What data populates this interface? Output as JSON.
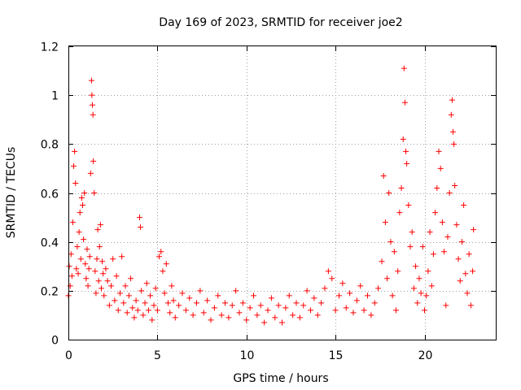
{
  "chart_data": {
    "type": "scatter",
    "title": "Day 169 of 2023, SRMTID for receiver joe2",
    "xlabel": "GPS time / hours",
    "ylabel": "SRMTID / TECUs",
    "xlim": [
      0,
      24
    ],
    "ylim": [
      0,
      1.2
    ],
    "xticks": [
      0,
      5,
      10,
      15,
      20
    ],
    "xtick_labels": [
      "0",
      "5",
      "10",
      "15",
      "20"
    ],
    "yticks": [
      0,
      0.2,
      0.4,
      0.6,
      0.8,
      1.0,
      1.2
    ],
    "ytick_labels": [
      "0",
      "0.2",
      "0.4",
      "0.6",
      "0.8",
      "1",
      "1.2"
    ],
    "grid": true,
    "marker": "+",
    "color": "#ff0000",
    "series": [
      {
        "name": "SRMTID",
        "points": [
          [
            0.0,
            0.18
          ],
          [
            0.05,
            0.3
          ],
          [
            0.1,
            0.22
          ],
          [
            0.15,
            0.35
          ],
          [
            0.2,
            0.26
          ],
          [
            0.25,
            0.48
          ],
          [
            0.3,
            0.71
          ],
          [
            0.35,
            0.77
          ],
          [
            0.4,
            0.64
          ],
          [
            0.45,
            0.29
          ],
          [
            0.5,
            0.38
          ],
          [
            0.55,
            0.27
          ],
          [
            0.6,
            0.44
          ],
          [
            0.65,
            0.52
          ],
          [
            0.7,
            0.33
          ],
          [
            0.75,
            0.58
          ],
          [
            0.8,
            0.55
          ],
          [
            0.85,
            0.41
          ],
          [
            0.9,
            0.6
          ],
          [
            0.95,
            0.31
          ],
          [
            1.0,
            0.25
          ],
          [
            1.05,
            0.37
          ],
          [
            1.1,
            0.22
          ],
          [
            1.15,
            0.29
          ],
          [
            1.2,
            0.34
          ],
          [
            1.25,
            0.68
          ],
          [
            1.3,
            1.06
          ],
          [
            1.32,
            1.0
          ],
          [
            1.35,
            0.96
          ],
          [
            1.38,
            0.92
          ],
          [
            1.4,
            0.73
          ],
          [
            1.45,
            0.6
          ],
          [
            1.5,
            0.28
          ],
          [
            1.55,
            0.19
          ],
          [
            1.6,
            0.33
          ],
          [
            1.65,
            0.45
          ],
          [
            1.7,
            0.24
          ],
          [
            1.75,
            0.38
          ],
          [
            1.8,
            0.47
          ],
          [
            1.85,
            0.21
          ],
          [
            1.9,
            0.32
          ],
          [
            1.95,
            0.27
          ],
          [
            2.0,
            0.18
          ],
          [
            2.1,
            0.29
          ],
          [
            2.2,
            0.24
          ],
          [
            2.3,
            0.14
          ],
          [
            2.4,
            0.22
          ],
          [
            2.5,
            0.33
          ],
          [
            2.6,
            0.16
          ],
          [
            2.7,
            0.26
          ],
          [
            2.8,
            0.12
          ],
          [
            2.9,
            0.19
          ],
          [
            3.0,
            0.34
          ],
          [
            3.1,
            0.15
          ],
          [
            3.2,
            0.22
          ],
          [
            3.3,
            0.11
          ],
          [
            3.4,
            0.18
          ],
          [
            3.5,
            0.25
          ],
          [
            3.6,
            0.13
          ],
          [
            3.7,
            0.09
          ],
          [
            3.8,
            0.16
          ],
          [
            3.9,
            0.12
          ],
          [
            4.0,
            0.5
          ],
          [
            4.05,
            0.46
          ],
          [
            4.1,
            0.2
          ],
          [
            4.2,
            0.1
          ],
          [
            4.3,
            0.15
          ],
          [
            4.4,
            0.23
          ],
          [
            4.5,
            0.12
          ],
          [
            4.6,
            0.18
          ],
          [
            4.7,
            0.08
          ],
          [
            4.8,
            0.14
          ],
          [
            4.9,
            0.21
          ],
          [
            5.0,
            0.12
          ],
          [
            5.1,
            0.34
          ],
          [
            5.2,
            0.36
          ],
          [
            5.3,
            0.28
          ],
          [
            5.4,
            0.19
          ],
          [
            5.5,
            0.31
          ],
          [
            5.6,
            0.15
          ],
          [
            5.7,
            0.11
          ],
          [
            5.8,
            0.22
          ],
          [
            5.9,
            0.16
          ],
          [
            6.0,
            0.09
          ],
          [
            6.2,
            0.14
          ],
          [
            6.4,
            0.19
          ],
          [
            6.6,
            0.12
          ],
          [
            6.8,
            0.17
          ],
          [
            7.0,
            0.1
          ],
          [
            7.2,
            0.15
          ],
          [
            7.4,
            0.2
          ],
          [
            7.6,
            0.11
          ],
          [
            7.8,
            0.16
          ],
          [
            8.0,
            0.08
          ],
          [
            8.2,
            0.13
          ],
          [
            8.4,
            0.18
          ],
          [
            8.6,
            0.1
          ],
          [
            8.8,
            0.15
          ],
          [
            9.0,
            0.09
          ],
          [
            9.2,
            0.14
          ],
          [
            9.4,
            0.2
          ],
          [
            9.6,
            0.11
          ],
          [
            9.8,
            0.15
          ],
          [
            10.0,
            0.08
          ],
          [
            10.2,
            0.13
          ],
          [
            10.4,
            0.18
          ],
          [
            10.6,
            0.1
          ],
          [
            10.8,
            0.14
          ],
          [
            11.0,
            0.07
          ],
          [
            11.2,
            0.12
          ],
          [
            11.4,
            0.17
          ],
          [
            11.6,
            0.09
          ],
          [
            11.8,
            0.14
          ],
          [
            12.0,
            0.07
          ],
          [
            12.2,
            0.13
          ],
          [
            12.4,
            0.18
          ],
          [
            12.6,
            0.1
          ],
          [
            12.8,
            0.15
          ],
          [
            13.0,
            0.09
          ],
          [
            13.2,
            0.14
          ],
          [
            13.4,
            0.2
          ],
          [
            13.6,
            0.12
          ],
          [
            13.8,
            0.17
          ],
          [
            14.0,
            0.1
          ],
          [
            14.2,
            0.15
          ],
          [
            14.4,
            0.21
          ],
          [
            14.6,
            0.28
          ],
          [
            14.8,
            0.25
          ],
          [
            15.0,
            0.12
          ],
          [
            15.2,
            0.18
          ],
          [
            15.4,
            0.23
          ],
          [
            15.6,
            0.13
          ],
          [
            15.8,
            0.19
          ],
          [
            16.0,
            0.11
          ],
          [
            16.2,
            0.16
          ],
          [
            16.4,
            0.22
          ],
          [
            16.6,
            0.12
          ],
          [
            16.8,
            0.18
          ],
          [
            17.0,
            0.1
          ],
          [
            17.2,
            0.15
          ],
          [
            17.4,
            0.21
          ],
          [
            17.6,
            0.32
          ],
          [
            17.7,
            0.67
          ],
          [
            17.8,
            0.48
          ],
          [
            17.9,
            0.25
          ],
          [
            18.0,
            0.6
          ],
          [
            18.1,
            0.4
          ],
          [
            18.2,
            0.18
          ],
          [
            18.3,
            0.36
          ],
          [
            18.4,
            0.12
          ],
          [
            18.5,
            0.28
          ],
          [
            18.6,
            0.52
          ],
          [
            18.7,
            0.62
          ],
          [
            18.8,
            0.82
          ],
          [
            18.85,
            1.11
          ],
          [
            18.9,
            0.97
          ],
          [
            18.95,
            0.77
          ],
          [
            19.0,
            0.72
          ],
          [
            19.1,
            0.55
          ],
          [
            19.2,
            0.38
          ],
          [
            19.3,
            0.44
          ],
          [
            19.4,
            0.21
          ],
          [
            19.5,
            0.3
          ],
          [
            19.6,
            0.15
          ],
          [
            19.7,
            0.25
          ],
          [
            19.8,
            0.19
          ],
          [
            19.9,
            0.38
          ],
          [
            20.0,
            0.12
          ],
          [
            20.1,
            0.18
          ],
          [
            20.2,
            0.28
          ],
          [
            20.3,
            0.44
          ],
          [
            20.4,
            0.22
          ],
          [
            20.5,
            0.35
          ],
          [
            20.6,
            0.52
          ],
          [
            20.7,
            0.62
          ],
          [
            20.8,
            0.77
          ],
          [
            20.9,
            0.7
          ],
          [
            21.0,
            0.48
          ],
          [
            21.1,
            0.36
          ],
          [
            21.2,
            0.14
          ],
          [
            21.3,
            0.42
          ],
          [
            21.4,
            0.6
          ],
          [
            21.5,
            0.92
          ],
          [
            21.55,
            0.98
          ],
          [
            21.6,
            0.85
          ],
          [
            21.65,
            0.8
          ],
          [
            21.7,
            0.63
          ],
          [
            21.8,
            0.47
          ],
          [
            21.9,
            0.33
          ],
          [
            22.0,
            0.24
          ],
          [
            22.1,
            0.4
          ],
          [
            22.2,
            0.55
          ],
          [
            22.3,
            0.27
          ],
          [
            22.4,
            0.19
          ],
          [
            22.5,
            0.35
          ],
          [
            22.6,
            0.14
          ],
          [
            22.7,
            0.28
          ],
          [
            22.75,
            0.45
          ]
        ]
      }
    ]
  }
}
